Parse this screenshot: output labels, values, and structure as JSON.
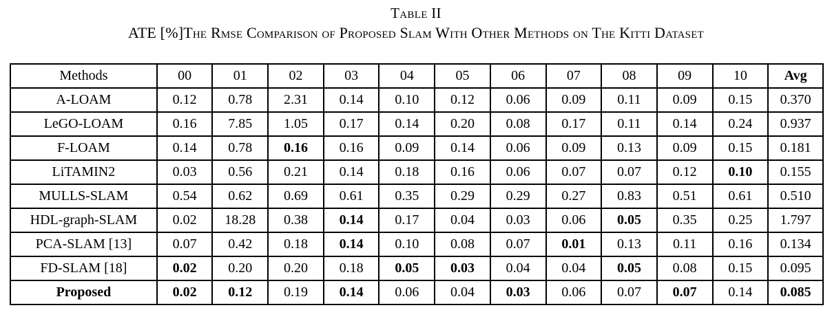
{
  "title": "Table II",
  "caption": "ATE [%]The Rmse Comparison of Proposed Slam With Other Methods on The Kitti Dataset",
  "table": {
    "columns": [
      {
        "label": "Methods",
        "bold": false
      },
      {
        "label": "00",
        "bold": false
      },
      {
        "label": "01",
        "bold": false
      },
      {
        "label": "02",
        "bold": false
      },
      {
        "label": "03",
        "bold": false
      },
      {
        "label": "04",
        "bold": false
      },
      {
        "label": "05",
        "bold": false
      },
      {
        "label": "06",
        "bold": false
      },
      {
        "label": "07",
        "bold": false
      },
      {
        "label": "08",
        "bold": false
      },
      {
        "label": "09",
        "bold": false
      },
      {
        "label": "10",
        "bold": false
      },
      {
        "label": "Avg",
        "bold": true
      }
    ],
    "rows": [
      {
        "method": "A-LOAM",
        "method_bold": false,
        "values": [
          "0.12",
          "0.78",
          "2.31",
          "0.14",
          "0.10",
          "0.12",
          "0.06",
          "0.09",
          "0.11",
          "0.09",
          "0.15",
          "0.370"
        ],
        "bold_indices": []
      },
      {
        "method": "LeGO-LOAM",
        "method_bold": false,
        "values": [
          "0.16",
          "7.85",
          "1.05",
          "0.17",
          "0.14",
          "0.20",
          "0.08",
          "0.17",
          "0.11",
          "0.14",
          "0.24",
          "0.937"
        ],
        "bold_indices": []
      },
      {
        "method": "F-LOAM",
        "method_bold": false,
        "values": [
          "0.14",
          "0.78",
          "0.16",
          "0.16",
          "0.09",
          "0.14",
          "0.06",
          "0.09",
          "0.13",
          "0.09",
          "0.15",
          "0.181"
        ],
        "bold_indices": [
          2
        ]
      },
      {
        "method": "LiTAMIN2",
        "method_bold": false,
        "values": [
          "0.03",
          "0.56",
          "0.21",
          "0.14",
          "0.18",
          "0.16",
          "0.06",
          "0.07",
          "0.07",
          "0.12",
          "0.10",
          "0.155"
        ],
        "bold_indices": [
          10
        ]
      },
      {
        "method": "MULLS-SLAM",
        "method_bold": false,
        "values": [
          "0.54",
          "0.62",
          "0.69",
          "0.61",
          "0.35",
          "0.29",
          "0.29",
          "0.27",
          "0.83",
          "0.51",
          "0.61",
          "0.510"
        ],
        "bold_indices": []
      },
      {
        "method": "HDL-graph-SLAM",
        "method_bold": false,
        "values": [
          "0.02",
          "18.28",
          "0.38",
          "0.14",
          "0.17",
          "0.04",
          "0.03",
          "0.06",
          "0.05",
          "0.35",
          "0.25",
          "1.797"
        ],
        "bold_indices": [
          3,
          8
        ]
      },
      {
        "method": "PCA-SLAM [13]",
        "method_bold": false,
        "values": [
          "0.07",
          "0.42",
          "0.18",
          "0.14",
          "0.10",
          "0.08",
          "0.07",
          "0.01",
          "0.13",
          "0.11",
          "0.16",
          "0.134"
        ],
        "bold_indices": [
          3,
          7
        ]
      },
      {
        "method": "FD-SLAM [18]",
        "method_bold": false,
        "values": [
          "0.02",
          "0.20",
          "0.20",
          "0.18",
          "0.05",
          "0.03",
          "0.04",
          "0.04",
          "0.05",
          "0.08",
          "0.15",
          "0.095"
        ],
        "bold_indices": [
          0,
          4,
          5,
          8
        ]
      },
      {
        "method": "Proposed",
        "method_bold": true,
        "values": [
          "0.02",
          "0.12",
          "0.19",
          "0.14",
          "0.06",
          "0.04",
          "0.03",
          "0.06",
          "0.07",
          "0.07",
          "0.14",
          "0.085"
        ],
        "bold_indices": [
          0,
          1,
          3,
          6,
          9,
          11
        ]
      }
    ]
  },
  "colors": {
    "text": "#000000",
    "background": "#ffffff",
    "border": "#000000"
  }
}
